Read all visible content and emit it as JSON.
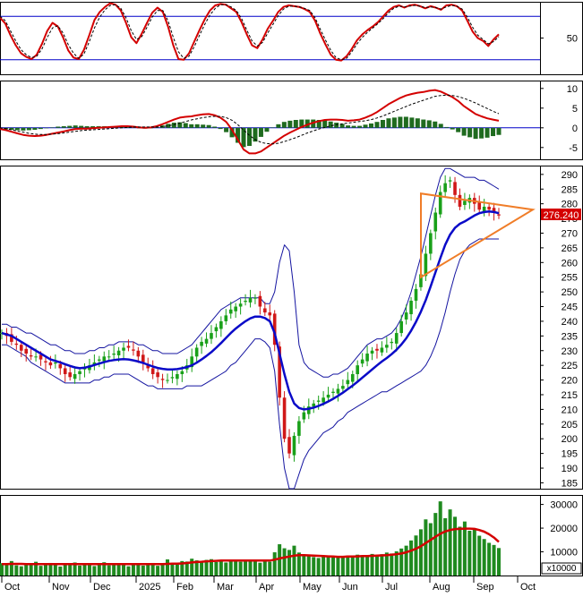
{
  "chart_data": [
    {
      "panel": "stochastic",
      "type": "line",
      "y_ticks": [
        "50"
      ],
      "reference_lines": [
        20,
        80
      ],
      "ylim": [
        0,
        100
      ],
      "series": [
        {
          "color": "#d40000",
          "style": "solid",
          "values": [
            78,
            70,
            54,
            40,
            29,
            24,
            21,
            27,
            42,
            60,
            71,
            66,
            51,
            33,
            23,
            21,
            34,
            54,
            75,
            86,
            93,
            98,
            96,
            88,
            71,
            51,
            43,
            56,
            71,
            85,
            92,
            86,
            66,
            40,
            21,
            20,
            29,
            45,
            61,
            76,
            88,
            95,
            97,
            96,
            91,
            86,
            72,
            55,
            40,
            36,
            48,
            63,
            74,
            86,
            93,
            95,
            94,
            93,
            90,
            86,
            74,
            56,
            41,
            27,
            20,
            19,
            25,
            35,
            47,
            55,
            61,
            66,
            72,
            80,
            88,
            93,
            95,
            92,
            95,
            96,
            94,
            91,
            94,
            92,
            89,
            95,
            96,
            94,
            88,
            74,
            59,
            50,
            46,
            39,
            48,
            55
          ]
        },
        {
          "color": "#000000",
          "style": "dashed",
          "values": [
            80,
            74,
            60,
            46,
            34,
            27,
            23,
            25,
            35,
            51,
            64,
            67,
            57,
            41,
            29,
            22,
            28,
            45,
            64,
            79,
            89,
            95,
            96,
            91,
            78,
            60,
            48,
            52,
            65,
            79,
            88,
            88,
            74,
            51,
            31,
            22,
            25,
            38,
            54,
            69,
            82,
            91,
            96,
            96,
            93,
            88,
            77,
            61,
            46,
            39,
            44,
            57,
            69,
            81,
            90,
            94,
            94,
            93,
            91,
            88,
            78,
            62,
            47,
            33,
            23,
            20,
            22,
            31,
            42,
            51,
            58,
            64,
            70,
            77,
            85,
            91,
            94,
            93,
            94,
            95,
            94,
            92,
            93,
            92,
            90,
            93,
            95,
            94,
            90,
            79,
            65,
            54,
            48,
            42,
            45,
            52
          ]
        }
      ]
    },
    {
      "panel": "macd",
      "type": "line+histogram",
      "y_ticks": [
        "10",
        "5",
        "0",
        "-5"
      ],
      "ylim": [
        -8,
        12
      ],
      "histogram_color": "#1f6b1f",
      "series": [
        {
          "color": "#d40000",
          "style": "solid",
          "values": [
            -0.3,
            -0.6,
            -1.0,
            -1.4,
            -1.8,
            -2.0,
            -2.1,
            -2.0,
            -1.8,
            -1.5,
            -1.2,
            -0.9,
            -0.6,
            -0.3,
            -0.2,
            -0.2,
            -0.1,
            0.0,
            0.1,
            0.2,
            0.3,
            0.4,
            0.4,
            0.3,
            0.1,
            0.0,
            0.1,
            0.4,
            0.9,
            1.5,
            2.1,
            2.6,
            2.8,
            2.9,
            3.2,
            3.4,
            3.5,
            3.2,
            2.6,
            1.5,
            -0.5,
            -3.0,
            -5.5,
            -6.5,
            -6.5,
            -6.0,
            -5.0,
            -4.0,
            -3.0,
            -2.0,
            -1.2,
            -0.5,
            0.2,
            0.8,
            1.3,
            1.7,
            2.0,
            2.1,
            2.1,
            2.0,
            1.8,
            1.9,
            2.1,
            2.6,
            3.2,
            4.0,
            5.0,
            6.0,
            6.8,
            7.6,
            8.2,
            8.6,
            8.9,
            9.1,
            9.4,
            9.6,
            9.2,
            8.5,
            7.8,
            6.8,
            5.5,
            4.5,
            3.5,
            2.9,
            2.4,
            2.1,
            1.8
          ]
        },
        {
          "color": "#000000",
          "style": "dashed",
          "values": [
            0.0,
            -0.2,
            -0.5,
            -0.8,
            -1.1,
            -1.4,
            -1.6,
            -1.7,
            -1.7,
            -1.6,
            -1.5,
            -1.3,
            -1.1,
            -0.9,
            -0.7,
            -0.6,
            -0.5,
            -0.4,
            -0.3,
            -0.2,
            -0.1,
            0.0,
            0.1,
            0.2,
            0.2,
            0.2,
            0.2,
            0.2,
            0.3,
            0.5,
            0.8,
            1.2,
            1.6,
            2.0,
            2.3,
            2.6,
            2.8,
            2.9,
            2.9,
            2.6,
            1.9,
            0.8,
            -0.6,
            -1.9,
            -3.0,
            -3.7,
            -4.0,
            -4.1,
            -3.9,
            -3.5,
            -3.0,
            -2.5,
            -1.9,
            -1.3,
            -0.8,
            -0.3,
            0.1,
            0.5,
            0.8,
            1.0,
            1.2,
            1.4,
            1.6,
            1.8,
            2.1,
            2.5,
            3.0,
            3.6,
            4.2,
            4.8,
            5.4,
            6.0,
            6.5,
            7.0,
            7.5,
            8.0,
            8.2,
            8.3,
            8.2,
            7.9,
            7.5,
            6.9,
            6.3,
            5.6,
            4.9,
            4.2,
            3.6
          ]
        }
      ]
    },
    {
      "panel": "price",
      "type": "candlestick",
      "y_ticks": [
        "290",
        "285",
        "280",
        "275",
        "270",
        "265",
        "260",
        "255",
        "250",
        "245",
        "240",
        "235",
        "230",
        "225",
        "220",
        "215",
        "210",
        "205",
        "200",
        "195",
        "190",
        "185"
      ],
      "ylim": [
        183,
        293
      ],
      "last_price_label": "276.240",
      "x_labels": [
        "Oct",
        "Nov",
        "Dec",
        "2025",
        "Feb",
        "Mar",
        "Apr",
        "May",
        "Jun",
        "Jul",
        "Aug",
        "Sep",
        "Oct"
      ],
      "close": [
        236,
        235,
        233,
        232,
        230,
        229,
        228,
        228,
        227,
        226,
        225,
        226,
        224,
        222,
        221,
        222,
        223,
        224,
        225,
        226,
        227,
        228,
        228,
        229,
        230,
        231,
        231,
        230,
        228,
        226,
        224,
        222,
        221,
        220,
        220,
        221,
        222,
        223,
        225,
        228,
        231,
        233,
        234,
        236,
        238,
        240,
        242,
        244,
        245,
        246,
        247,
        248,
        248,
        245,
        243,
        242,
        232,
        214,
        200,
        195,
        201,
        206,
        209,
        211,
        212,
        213,
        214,
        215,
        216,
        217,
        218,
        220,
        222,
        225,
        227,
        229,
        230,
        230,
        231,
        232,
        233,
        236,
        240,
        243,
        247,
        251,
        256,
        263,
        270,
        277,
        284,
        287,
        288,
        283,
        279,
        281,
        282,
        280,
        278,
        279,
        278,
        277,
        276
      ],
      "ma": [
        236,
        235.5,
        235,
        234,
        233,
        232,
        231,
        230,
        229,
        228,
        227,
        226.5,
        226,
        225.4,
        224.8,
        224.3,
        224,
        224.2,
        224.6,
        225.1,
        225.6,
        226.1,
        226.5,
        226.8,
        227,
        227.1,
        227,
        226.7,
        226.3,
        225.8,
        225.2,
        224.6,
        224.1,
        223.8,
        223.6,
        223.6,
        223.7,
        224,
        224.4,
        225,
        225.9,
        227,
        228.2,
        229.5,
        231,
        232.6,
        234.3,
        236,
        237.5,
        238.8,
        240,
        241,
        241.6,
        241.6,
        241.1,
        240,
        236,
        229,
        222,
        216,
        212,
        210.5,
        210,
        210.2,
        210.6,
        211.2,
        211.9,
        212.7,
        213.6,
        214.6,
        215.7,
        216.9,
        218.1,
        219.4,
        220.8,
        222.2,
        223.6,
        225,
        226.3,
        227.5,
        228.8,
        230.3,
        232.1,
        234.2,
        236.8,
        239.8,
        243.2,
        247.2,
        251.8,
        256.7,
        261.5,
        266,
        269.5,
        271.8,
        273.2,
        274,
        275,
        276,
        276.8,
        277.2,
        277.4,
        277.2,
        276.8
      ],
      "bands": {
        "upper": [
          239,
          239,
          238,
          238,
          237,
          236,
          236,
          235,
          234,
          233,
          232,
          232,
          231,
          230,
          230,
          229,
          229,
          229,
          230,
          230,
          231,
          231,
          232,
          232,
          233,
          233,
          233,
          233,
          232,
          232,
          231,
          230,
          230,
          229,
          229,
          229,
          229,
          230,
          231,
          232,
          234,
          236,
          238,
          240,
          242,
          244,
          245,
          246,
          247,
          248,
          248,
          248,
          248,
          248,
          246,
          246,
          250,
          260,
          266,
          264,
          250,
          232,
          226,
          224,
          223,
          222,
          221,
          221,
          222,
          222,
          223,
          224,
          226,
          228,
          230,
          232,
          233,
          234,
          234,
          235,
          236,
          238,
          241,
          245,
          250,
          256,
          262,
          269,
          276,
          283,
          289,
          292,
          292,
          291,
          290,
          289,
          289,
          289,
          288,
          288,
          287,
          286,
          285
        ],
        "lower": [
          232,
          232,
          231,
          230,
          229,
          228,
          226,
          225,
          224,
          223,
          222,
          221,
          220,
          219,
          219,
          219,
          219,
          219,
          219,
          220,
          220,
          221,
          221,
          222,
          222,
          222,
          222,
          221,
          220,
          219,
          218,
          218,
          217,
          217,
          217,
          217,
          217,
          217,
          218,
          218,
          218,
          218,
          219,
          220,
          221,
          222,
          223,
          225,
          226,
          228,
          230,
          232,
          234,
          234,
          233,
          231,
          223,
          205,
          190,
          183,
          183,
          188,
          193,
          196,
          198,
          200,
          202,
          203,
          204,
          206,
          207,
          209,
          210,
          211,
          212,
          213,
          214,
          215,
          216,
          216,
          217,
          218,
          219,
          220,
          221,
          222,
          223,
          225,
          228,
          232,
          237,
          243,
          250,
          256,
          261,
          264,
          266,
          267,
          268,
          268,
          268,
          268,
          268
        ]
      },
      "annotation": {
        "type": "triangle",
        "color": "#f07d28"
      }
    },
    {
      "panel": "volume",
      "type": "bar",
      "y_ticks": [
        "30000",
        "20000",
        "10000"
      ],
      "unit_label": "x10000",
      "ylim": [
        0,
        34000
      ],
      "bar_color": "#1f8a1f",
      "values": [
        5200,
        4800,
        6100,
        4300,
        3900,
        5000,
        4400,
        5800,
        4100,
        4700,
        5300,
        4600,
        3800,
        5100,
        4500,
        5500,
        4200,
        4900,
        5200,
        4000,
        4400,
        5600,
        4300,
        4800,
        5100,
        4500,
        3900,
        4700,
        5000,
        4200,
        4600,
        5300,
        4100,
        4800,
        6800,
        5200,
        4600,
        6100,
        5900,
        7100,
        6400,
        5800,
        6600,
        6900,
        5700,
        6200,
        5500,
        6000,
        6500,
        5800,
        6300,
        5900,
        6700,
        5400,
        6100,
        5800,
        9800,
        13200,
        11500,
        10800,
        12600,
        9700,
        8900,
        8200,
        7800,
        7400,
        8100,
        7900,
        7600,
        8300,
        7700,
        8400,
        8000,
        8800,
        7900,
        8600,
        9100,
        8300,
        9000,
        9700,
        9300,
        10200,
        11400,
        12600,
        14800,
        16900,
        19500,
        23700,
        22100,
        26400,
        31300,
        24200,
        27900,
        24800,
        20600,
        22800,
        18900,
        19700,
        16800,
        15400,
        13800,
        12900,
        11600
      ],
      "ma": [
        4800,
        4800,
        4900,
        4900,
        4900,
        4800,
        4800,
        4800,
        4800,
        4800,
        4800,
        4800,
        4800,
        4800,
        4800,
        4800,
        4800,
        4800,
        4800,
        4800,
        4800,
        4800,
        4800,
        4800,
        4800,
        4800,
        4800,
        4800,
        4800,
        4800,
        4800,
        4800,
        4800,
        4800,
        4900,
        5000,
        5000,
        5100,
        5300,
        5500,
        5700,
        5800,
        6000,
        6100,
        6200,
        6300,
        6300,
        6300,
        6300,
        6300,
        6300,
        6300,
        6300,
        6300,
        6300,
        6300,
        6700,
        7200,
        7600,
        8000,
        8400,
        8600,
        8600,
        8500,
        8400,
        8300,
        8200,
        8100,
        8000,
        7900,
        7900,
        8000,
        8000,
        8100,
        8200,
        8200,
        8300,
        8400,
        8500,
        8600,
        8800,
        9000,
        9300,
        9800,
        10500,
        11300,
        12300,
        13700,
        15000,
        16400,
        17600,
        18600,
        19200,
        19600,
        19700,
        19800,
        19800,
        19700,
        19200,
        18500,
        17400,
        16000,
        14200
      ]
    }
  ]
}
